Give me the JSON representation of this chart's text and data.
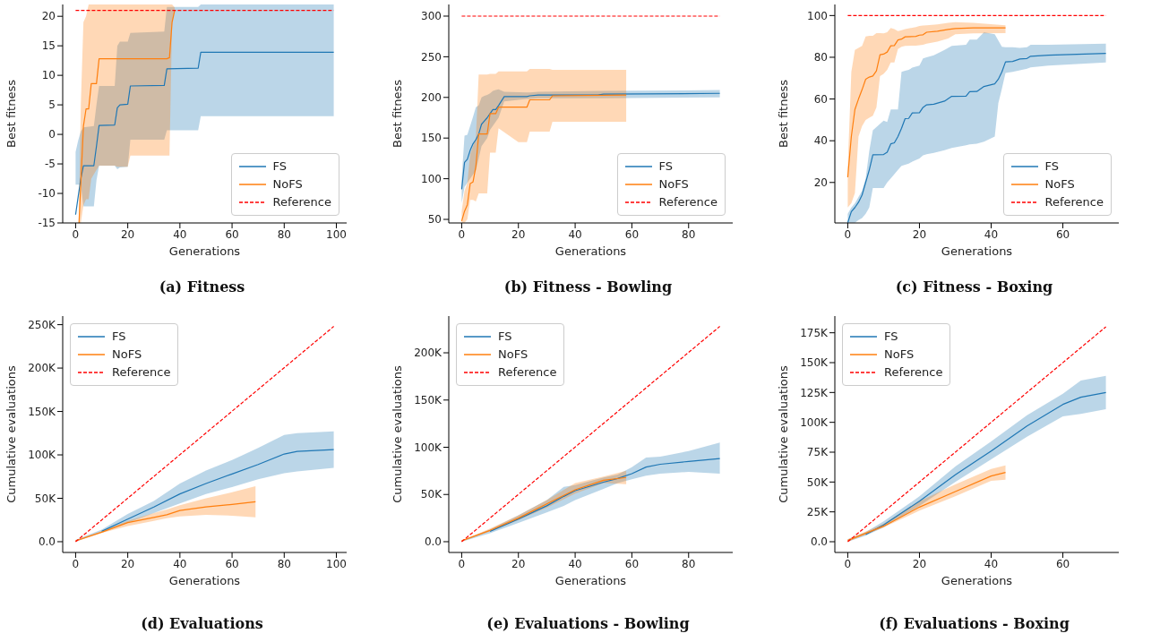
{
  "chart_data": [
    {
      "type": "line",
      "title": "(a) Fitness",
      "xlabel": "Generations",
      "ylabel": "Best fitness",
      "xlim": [
        -4.95,
        103.95
      ],
      "xticks": [
        0,
        20,
        40,
        60,
        80,
        100
      ],
      "ylim": [
        -15,
        22
      ],
      "yticks": [
        -15,
        -10,
        -5,
        0,
        5,
        10,
        15,
        20
      ],
      "legend": "bottom right",
      "grid": false,
      "line_style": "solid",
      "series": [
        {
          "name": "FS",
          "color": "#1f77b4",
          "x": [
            0,
            1,
            2,
            3,
            7,
            8,
            9,
            15,
            16,
            17,
            20,
            21,
            34,
            35,
            47,
            48,
            99
          ],
          "values": [
            -13.6,
            -10.5,
            -7.5,
            -5.3,
            -5.3,
            -2,
            1.5,
            1.6,
            4.5,
            5,
            5.1,
            8.2,
            8.3,
            11.1,
            11.2,
            13.9,
            13.9
          ],
          "lower": [
            -8.5,
            -8.5,
            -8.5,
            -12.2,
            -12.2,
            -7.8,
            -5.3,
            -5.3,
            -5.9,
            -5.6,
            -5.5,
            -0.9,
            -0.9,
            0.7,
            0.7,
            3.1,
            3.1
          ],
          "upper": [
            -3,
            -1,
            0.5,
            1.2,
            1.4,
            5,
            8.2,
            8.2,
            15,
            15.7,
            15.7,
            17.2,
            17.4,
            21.6,
            21.6,
            22,
            22
          ]
        },
        {
          "name": "NoFS",
          "color": "#ff7f0e",
          "x": [
            1.3,
            2,
            3,
            4,
            5,
            6,
            8,
            9,
            15,
            16,
            20,
            21,
            35,
            36,
            37,
            38
          ],
          "values": [
            -15,
            -8.3,
            1.4,
            4.3,
            4.3,
            8.6,
            8.6,
            12.8,
            12.8,
            12.8,
            12.8,
            12.8,
            12.8,
            13,
            19,
            21
          ],
          "lower": [
            -15,
            -15,
            -12,
            -11,
            -11,
            -7.5,
            -6,
            -5.3,
            -5.3,
            -5.5,
            -5.5,
            -3.6,
            -3.6,
            -3.6,
            19,
            21
          ],
          "upper": [
            -12,
            5,
            19,
            20,
            22,
            22,
            22,
            22,
            22,
            22,
            22,
            22,
            22,
            22,
            22,
            21.5
          ]
        },
        {
          "name": "Reference",
          "color": "#ff0000",
          "line_style": "dashed",
          "x": [
            0,
            99
          ],
          "values": [
            21,
            21
          ]
        }
      ]
    },
    {
      "type": "line",
      "title": "(b) Fitness - Bowling",
      "xlabel": "Generations",
      "ylabel": "Best fitness",
      "xlim": [
        -4.55,
        95.55
      ],
      "xticks": [
        0,
        20,
        40,
        60,
        80
      ],
      "ylim": [
        45.6,
        314.3
      ],
      "yticks": [
        50,
        100,
        150,
        200,
        250,
        300
      ],
      "legend": "bottom right",
      "grid": false,
      "line_style": "solid",
      "series": [
        {
          "name": "FS",
          "color": "#1f77b4",
          "x": [
            0,
            1,
            2,
            3,
            4,
            5,
            6,
            7,
            8,
            9,
            10,
            11,
            12,
            13,
            15,
            23,
            24,
            27,
            48,
            50,
            91
          ],
          "values": [
            87,
            120,
            124,
            135,
            143,
            148,
            155,
            167,
            171,
            175,
            180,
            185,
            185,
            190,
            201,
            201,
            202,
            203,
            203,
            204,
            205
          ],
          "lower": [
            70,
            90,
            95,
            100,
            105,
            110,
            125,
            140,
            145,
            150,
            160,
            165,
            170,
            175,
            195,
            198,
            198,
            199,
            199,
            199,
            200
          ],
          "upper": [
            100,
            153,
            154,
            165,
            176,
            188,
            190,
            200,
            202,
            203,
            205,
            208,
            209,
            210,
            207,
            206,
            206,
            207,
            208,
            208,
            209
          ]
        },
        {
          "name": "NoFS",
          "color": "#ff7f0e",
          "x": [
            0,
            1,
            2,
            3,
            4,
            5,
            6,
            9,
            10,
            12,
            13,
            20,
            23,
            24,
            31,
            32,
            58
          ],
          "values": [
            48,
            60,
            68,
            94,
            96,
            115,
            155,
            155,
            180,
            180,
            188,
            188,
            188,
            197,
            197,
            202,
            203
          ],
          "lower": [
            46,
            46,
            50,
            74,
            74,
            72,
            82,
            82,
            132,
            132,
            162,
            145,
            145,
            158,
            158,
            170,
            170
          ],
          "upper": [
            60,
            85,
            95,
            130,
            140,
            150,
            228,
            228,
            229,
            229,
            232,
            232,
            232,
            235,
            235,
            234,
            234
          ]
        },
        {
          "name": "Reference",
          "color": "#ff0000",
          "line_style": "dashed",
          "x": [
            0,
            91
          ],
          "values": [
            300,
            300
          ]
        }
      ]
    },
    {
      "type": "line",
      "title": "(c) Fitness - Boxing",
      "xlabel": "Generations",
      "ylabel": "Best fitness",
      "xlim": [
        -3.6,
        75.6
      ],
      "xticks": [
        0,
        20,
        40,
        60
      ],
      "ylim": [
        0.6,
        105.3
      ],
      "yticks": [
        20,
        40,
        60,
        80,
        100
      ],
      "legend": "bottom right",
      "grid": false,
      "line_style": "solid",
      "series": [
        {
          "name": "FS",
          "color": "#1f77b4",
          "x": [
            0,
            1,
            2,
            3,
            4,
            5,
            6,
            7,
            10,
            11,
            12,
            13,
            14,
            15,
            16,
            17,
            18,
            20,
            21,
            22,
            24,
            27,
            29,
            33,
            34,
            36,
            38,
            41,
            42,
            43,
            44,
            46,
            48,
            50,
            51,
            56,
            72
          ],
          "values": [
            0.7,
            6,
            8,
            10.5,
            14,
            20,
            26,
            33.3,
            33.4,
            34.5,
            38.5,
            39,
            42,
            46,
            50.6,
            50.7,
            53.3,
            53.4,
            56,
            57.2,
            57.5,
            59,
            61.3,
            61.4,
            63.5,
            63.6,
            66,
            67.3,
            69.5,
            73,
            77.8,
            78,
            79.2,
            79.4,
            80.5,
            81,
            81.9
          ],
          "lower": [
            0.7,
            0.7,
            0.7,
            2,
            3,
            5,
            8,
            17.3,
            17.3,
            20,
            22,
            24,
            26,
            28,
            28.5,
            29,
            30,
            31.5,
            33,
            33.5,
            34.2,
            35.5,
            36.5,
            37.8,
            38.2,
            38.6,
            39.5,
            42,
            58,
            65,
            72.5,
            73,
            73.8,
            74.5,
            75.2,
            76,
            77.5
          ],
          "upper": [
            5,
            8,
            10,
            13,
            16,
            22,
            35,
            45,
            49.6,
            49,
            55,
            55,
            55,
            73,
            73.5,
            74,
            75,
            76,
            79.5,
            80,
            81,
            83.5,
            85.5,
            86,
            88.5,
            88.5,
            92,
            91,
            88,
            85,
            84.8,
            84.8,
            84.5,
            84.8,
            86,
            86,
            86.5
          ]
        },
        {
          "name": "NoFS",
          "color": "#ff7f0e",
          "x": [
            0,
            1,
            2,
            3,
            4,
            5,
            6,
            7,
            8,
            9,
            10,
            11,
            12,
            13,
            14,
            15,
            16,
            19,
            20,
            21,
            22,
            25,
            28,
            30,
            35,
            44
          ],
          "values": [
            22.5,
            42,
            55,
            60,
            64.5,
            69.5,
            70.5,
            71,
            73.5,
            81.2,
            81.5,
            82.5,
            85.5,
            85.6,
            88.3,
            88.7,
            89.8,
            90,
            90.6,
            90.8,
            92,
            92.5,
            93.3,
            93.8,
            94.1,
            94.1
          ],
          "lower": [
            8,
            10,
            15,
            42,
            47,
            50,
            51,
            52,
            56,
            71,
            72,
            74,
            77.5,
            77.5,
            84,
            85,
            85.5,
            85.6,
            85.8,
            86,
            86.5,
            87.5,
            89,
            91,
            91.5,
            91.6
          ],
          "upper": [
            27,
            73,
            83.5,
            84.5,
            85.5,
            90,
            90.3,
            90.3,
            91.6,
            91.6,
            91.5,
            92,
            94,
            93.5,
            92.5,
            93,
            93.5,
            94.5,
            95,
            95.2,
            95.3,
            95.8,
            96.5,
            96.8,
            96.5,
            95.3
          ]
        },
        {
          "name": "Reference",
          "color": "#ff0000",
          "line_style": "dashed",
          "x": [
            0,
            72
          ],
          "values": [
            100,
            100
          ]
        }
      ]
    },
    {
      "type": "line",
      "title": "(d) Evaluations",
      "xlabel": "Generations",
      "ylabel": "Cumulative evaluations",
      "xlim": [
        -4.95,
        103.95
      ],
      "xticks": [
        0,
        20,
        40,
        60,
        80,
        100
      ],
      "ylim": [
        -12400,
        259900
      ],
      "yticks": [
        {
          "value": 0,
          "label": "0.0"
        },
        {
          "value": 50000,
          "label": "50K"
        },
        {
          "value": 100000,
          "label": "100K"
        },
        {
          "value": 150000,
          "label": "150K"
        },
        {
          "value": 200000,
          "label": "200K"
        },
        {
          "value": 250000,
          "label": "250K"
        }
      ],
      "legend": "top left",
      "grid": false,
      "line_style": "solid",
      "series": [
        {
          "name": "FS",
          "color": "#1f77b4",
          "x": [
            0,
            10,
            20,
            30,
            40,
            50,
            60,
            70,
            80,
            85,
            99
          ],
          "values": [
            null,
            12000,
            26000,
            40000,
            55000,
            67000,
            78000,
            89000,
            101000,
            104000,
            106000
          ],
          "lower": [
            0,
            11000,
            22000,
            33000,
            44000,
            55000,
            63000,
            72000,
            79000,
            81000,
            85000
          ],
          "upper": [
            2000,
            14000,
            32000,
            47000,
            67000,
            82000,
            94000,
            108000,
            123000,
            125000,
            127000
          ]
        },
        {
          "name": "NoFS",
          "color": "#ff7f0e",
          "x": [
            0,
            10,
            20,
            30,
            35,
            40,
            50,
            60,
            69
          ],
          "values": [
            1000,
            11000,
            22000,
            28000,
            31000,
            36000,
            40000,
            43000,
            46000
          ],
          "lower": [
            0,
            10000,
            18000,
            24000,
            27000,
            29000,
            31000,
            30000,
            28000
          ],
          "upper": [
            2000,
            12000,
            24000,
            33000,
            37000,
            42000,
            50000,
            57000,
            64000
          ]
        },
        {
          "name": "Reference",
          "color": "#ff0000",
          "line_style": "dashed",
          "x": [
            0,
            99
          ],
          "values": [
            0,
            248000
          ]
        }
      ]
    },
    {
      "type": "line",
      "title": "(e) Evaluations - Bowling",
      "xlabel": "Generations",
      "ylabel": "Cumulative evaluations",
      "xlim": [
        -4.55,
        95.55
      ],
      "xticks": [
        0,
        20,
        40,
        60,
        80
      ],
      "ylim": [
        -11400,
        238900
      ],
      "yticks": [
        {
          "value": 0,
          "label": "0.0"
        },
        {
          "value": 50000,
          "label": "50K"
        },
        {
          "value": 100000,
          "label": "100K"
        },
        {
          "value": 150000,
          "label": "150K"
        },
        {
          "value": 200000,
          "label": "200K"
        }
      ],
      "legend": "top left",
      "grid": false,
      "line_style": "solid",
      "series": [
        {
          "name": "FS",
          "color": "#1f77b4",
          "x": [
            0,
            10,
            20,
            30,
            36,
            40,
            50,
            55,
            60,
            65,
            70,
            80,
            91
          ],
          "values": [
            null,
            11000,
            24000,
            38000,
            48000,
            54000,
            63000,
            67000,
            72000,
            79000,
            82000,
            85000,
            88000
          ],
          "lower": [
            0,
            9000,
            20000,
            31000,
            38000,
            44000,
            56000,
            62000,
            66000,
            70000,
            72000,
            74000,
            72000
          ],
          "upper": [
            1000,
            13000,
            28000,
            44000,
            58000,
            60000,
            68000,
            71000,
            79000,
            89000,
            90000,
            96000,
            105000
          ]
        },
        {
          "name": "NoFS",
          "color": "#ff7f0e",
          "x": [
            0,
            10,
            20,
            30,
            40,
            50,
            58
          ],
          "values": [
            1000,
            12000,
            25000,
            40000,
            55000,
            65000,
            68000
          ],
          "lower": [
            0,
            11000,
            23000,
            36000,
            51000,
            62000,
            61000
          ],
          "upper": [
            1000,
            14000,
            28000,
            44000,
            62000,
            69000,
            75000
          ]
        },
        {
          "name": "Reference",
          "color": "#ff0000",
          "line_style": "dashed",
          "x": [
            0,
            91
          ],
          "values": [
            0,
            228000
          ]
        }
      ]
    },
    {
      "type": "line",
      "title": "(f) Evaluations - Boxing",
      "xlabel": "Generations",
      "ylabel": "Cumulative evaluations",
      "xlim": [
        -3.6,
        75.6
      ],
      "xticks": [
        0,
        20,
        40,
        60
      ],
      "ylim": [
        -9000,
        189000
      ],
      "yticks": [
        {
          "value": 0,
          "label": "0.0"
        },
        {
          "value": 25000,
          "label": "25K"
        },
        {
          "value": 50000,
          "label": "50K"
        },
        {
          "value": 75000,
          "label": "75K"
        },
        {
          "value": 100000,
          "label": "100K"
        },
        {
          "value": 125000,
          "label": "125K"
        },
        {
          "value": 150000,
          "label": "150K"
        },
        {
          "value": 175000,
          "label": "175K"
        }
      ],
      "legend": "top left",
      "grid": false,
      "line_style": "solid",
      "series": [
        {
          "name": "FS",
          "color": "#1f77b4",
          "x": [
            0,
            5,
            10,
            20,
            30,
            40,
            50,
            60,
            65,
            72
          ],
          "values": [
            null,
            6000,
            14000,
            34000,
            56000,
            76000,
            97000,
            115000,
            121000,
            125000
          ],
          "lower": [
            0,
            5000,
            12000,
            30000,
            50000,
            69000,
            88000,
            105000,
            107000,
            111000
          ],
          "upper": [
            2000,
            8000,
            17000,
            38000,
            63000,
            84000,
            106000,
            124000,
            135000,
            139000
          ]
        },
        {
          "name": "NoFS",
          "color": "#ff7f0e",
          "x": [
            0,
            10,
            20,
            30,
            40,
            44
          ],
          "values": [
            1000,
            13000,
            29000,
            42000,
            55000,
            58000
          ],
          "lower": [
            0,
            12000,
            26000,
            38000,
            51000,
            52000
          ],
          "upper": [
            2000,
            15000,
            34000,
            48000,
            61000,
            64000
          ]
        },
        {
          "name": "Reference",
          "color": "#ff0000",
          "line_style": "dashed",
          "x": [
            0,
            72
          ],
          "values": [
            0,
            180000
          ]
        }
      ]
    }
  ]
}
